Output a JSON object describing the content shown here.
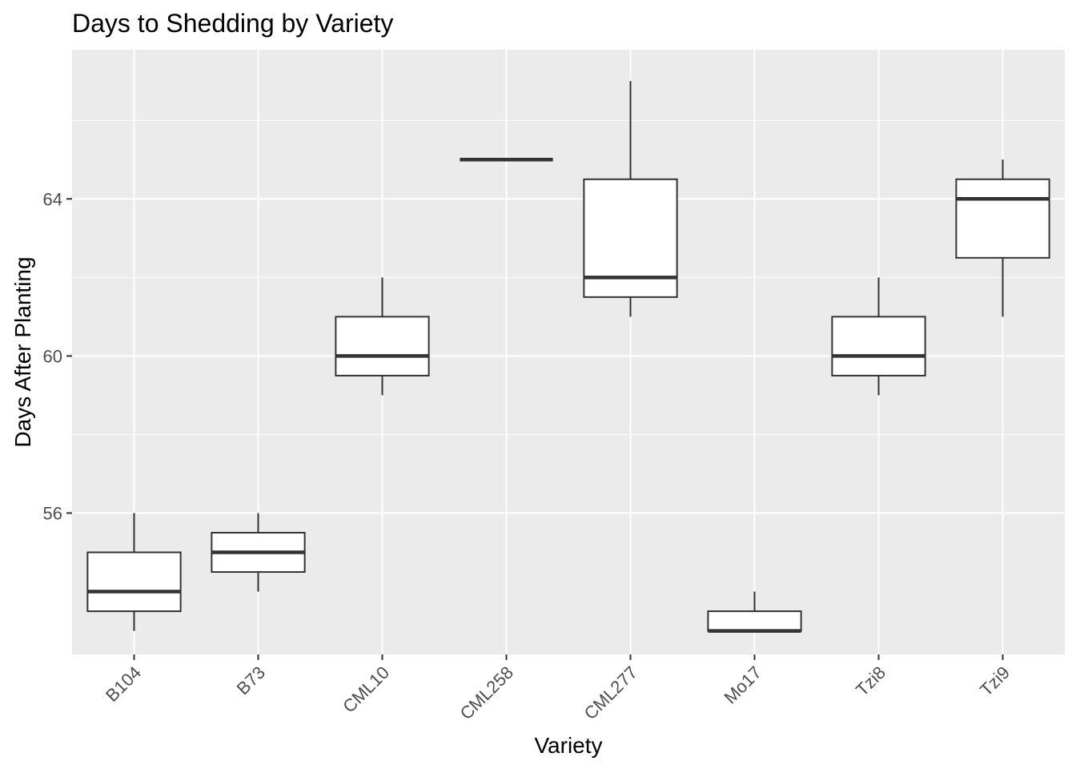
{
  "chart_data": {
    "type": "boxplot",
    "title": "Days to Shedding by Variety",
    "xlabel": "Variety",
    "ylabel": "Days After Planting",
    "categories": [
      "B104",
      "B73",
      "CML10",
      "CML258",
      "CML277",
      "Mo17",
      "Tzi8",
      "Tzi9"
    ],
    "boxes": [
      {
        "category": "B104",
        "min": 53,
        "q1": 53.5,
        "median": 54,
        "q3": 55,
        "max": 56
      },
      {
        "category": "B73",
        "min": 54,
        "q1": 54.5,
        "median": 55,
        "q3": 55.5,
        "max": 56
      },
      {
        "category": "CML10",
        "min": 59,
        "q1": 59.5,
        "median": 60,
        "q3": 61,
        "max": 62
      },
      {
        "category": "CML258",
        "min": 65,
        "q1": 65,
        "median": 65,
        "q3": 65,
        "max": 65
      },
      {
        "category": "CML277",
        "min": 61,
        "q1": 61.5,
        "median": 62,
        "q3": 64.5,
        "max": 67
      },
      {
        "category": "Mo17",
        "min": 53,
        "q1": 53,
        "median": 53,
        "q3": 53.5,
        "max": 54
      },
      {
        "category": "Tzi8",
        "min": 59,
        "q1": 59.5,
        "median": 60,
        "q3": 61,
        "max": 62
      },
      {
        "category": "Tzi9",
        "min": 61,
        "q1": 62.5,
        "median": 64,
        "q3": 64.5,
        "max": 65
      }
    ],
    "y_ticks": [
      56,
      60,
      64
    ],
    "y_minor_ticks": [
      58,
      62,
      66
    ],
    "ylim": [
      52.4,
      67.8
    ],
    "grid": true,
    "colors": {
      "panel": "#ebebeb",
      "grid": "#ffffff",
      "box_fill": "#ffffff",
      "box_line": "#333333",
      "tick": "#333333"
    }
  }
}
